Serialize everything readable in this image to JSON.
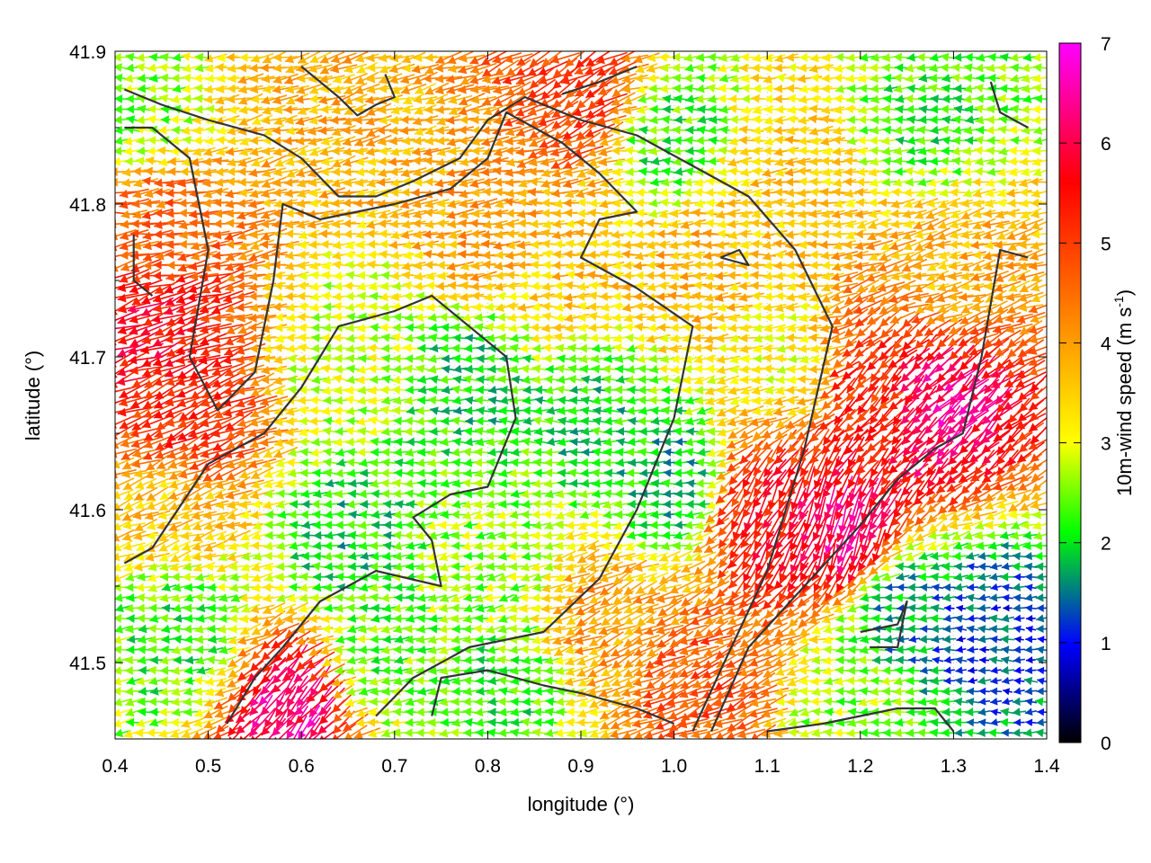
{
  "chart_data": {
    "type": "vector-field",
    "xlabel": "longitude (°)",
    "ylabel": "latitude (°)",
    "xlim": [
      0.4,
      1.4
    ],
    "ylim": [
      41.45,
      41.9
    ],
    "x_ticks": [
      "0.4",
      "0.5",
      "0.6",
      "0.7",
      "0.8",
      "0.9",
      "1.0",
      "1.1",
      "1.2",
      "1.3",
      "1.4"
    ],
    "y_ticks": [
      "41.5",
      "41.6",
      "41.7",
      "41.8",
      "41.9"
    ],
    "grid": true,
    "colorbar": {
      "label_main": "10m-wind speed (m s",
      "label_sup": "-1",
      "label_end": ")",
      "range": [
        0,
        7
      ],
      "ticks": [
        "0",
        "1",
        "2",
        "3",
        "4",
        "5",
        "6",
        "7"
      ],
      "colors": [
        "#000000",
        "#0000ff",
        "#00ff00",
        "#ffff00",
        "#ff0000",
        "#ff00ff"
      ],
      "stops": [
        0,
        0.14,
        0.3,
        0.43,
        0.8,
        1.0
      ]
    },
    "wind_zones": [
      {
        "lon": 0.44,
        "lat": 41.72,
        "speed": 5.6,
        "dir_deg": 200
      },
      {
        "lon": 0.48,
        "lat": 41.66,
        "speed": 5.2,
        "dir_deg": 205
      },
      {
        "lon": 0.45,
        "lat": 41.79,
        "speed": 4.6,
        "dir_deg": 185
      },
      {
        "lon": 0.46,
        "lat": 41.6,
        "speed": 3.6,
        "dir_deg": 200
      },
      {
        "lon": 0.47,
        "lat": 41.52,
        "speed": 2.2,
        "dir_deg": 185
      },
      {
        "lon": 0.43,
        "lat": 41.86,
        "speed": 2.6,
        "dir_deg": 180
      },
      {
        "lon": 0.62,
        "lat": 41.86,
        "speed": 3.8,
        "dir_deg": 195
      },
      {
        "lon": 0.66,
        "lat": 41.7,
        "speed": 2.8,
        "dir_deg": 180
      },
      {
        "lon": 0.65,
        "lat": 41.58,
        "speed": 2.0,
        "dir_deg": 180
      },
      {
        "lon": 0.6,
        "lat": 41.47,
        "speed": 6.3,
        "dir_deg": 230
      },
      {
        "lon": 0.68,
        "lat": 41.5,
        "speed": 2.4,
        "dir_deg": 185
      },
      {
        "lon": 0.8,
        "lat": 41.79,
        "speed": 4.0,
        "dir_deg": 185
      },
      {
        "lon": 0.78,
        "lat": 41.68,
        "speed": 2.0,
        "dir_deg": 180
      },
      {
        "lon": 0.8,
        "lat": 41.56,
        "speed": 2.6,
        "dir_deg": 190
      },
      {
        "lon": 0.82,
        "lat": 41.48,
        "speed": 2.2,
        "dir_deg": 180
      },
      {
        "lon": 0.9,
        "lat": 41.87,
        "speed": 5.0,
        "dir_deg": 210
      },
      {
        "lon": 0.9,
        "lat": 41.76,
        "speed": 3.6,
        "dir_deg": 180
      },
      {
        "lon": 0.92,
        "lat": 41.66,
        "speed": 2.0,
        "dir_deg": 180
      },
      {
        "lon": 0.93,
        "lat": 41.53,
        "speed": 4.0,
        "dir_deg": 205
      },
      {
        "lon": 1.0,
        "lat": 41.84,
        "speed": 2.2,
        "dir_deg": 180
      },
      {
        "lon": 1.02,
        "lat": 41.76,
        "speed": 3.8,
        "dir_deg": 185
      },
      {
        "lon": 1.0,
        "lat": 41.62,
        "speed": 1.8,
        "dir_deg": 180
      },
      {
        "lon": 1.03,
        "lat": 41.48,
        "speed": 4.8,
        "dir_deg": 205
      },
      {
        "lon": 1.1,
        "lat": 41.6,
        "speed": 5.5,
        "dir_deg": 240
      },
      {
        "lon": 1.12,
        "lat": 41.7,
        "speed": 3.2,
        "dir_deg": 185
      },
      {
        "lon": 1.12,
        "lat": 41.82,
        "speed": 3.6,
        "dir_deg": 185
      },
      {
        "lon": 1.18,
        "lat": 41.59,
        "speed": 6.2,
        "dir_deg": 250
      },
      {
        "lon": 1.22,
        "lat": 41.68,
        "speed": 5.2,
        "dir_deg": 225
      },
      {
        "lon": 1.28,
        "lat": 41.67,
        "speed": 6.3,
        "dir_deg": 225
      },
      {
        "lon": 1.25,
        "lat": 41.53,
        "speed": 1.6,
        "dir_deg": 180
      },
      {
        "lon": 1.33,
        "lat": 41.52,
        "speed": 1.2,
        "dir_deg": 180
      },
      {
        "lon": 1.3,
        "lat": 41.76,
        "speed": 3.8,
        "dir_deg": 195
      },
      {
        "lon": 1.28,
        "lat": 41.86,
        "speed": 2.2,
        "dir_deg": 180
      },
      {
        "lon": 1.2,
        "lat": 41.47,
        "speed": 2.6,
        "dir_deg": 185
      }
    ],
    "contours": [
      [
        [
          0.41,
          41.875
        ],
        [
          0.45,
          41.865
        ],
        [
          0.5,
          41.855
        ],
        [
          0.56,
          41.845
        ],
        [
          0.6,
          41.83
        ],
        [
          0.64,
          41.805
        ],
        [
          0.68,
          41.805
        ],
        [
          0.72,
          41.815
        ],
        [
          0.77,
          41.83
        ],
        [
          0.8,
          41.855
        ],
        [
          0.84,
          41.87
        ],
        [
          0.9,
          41.855
        ],
        [
          0.96,
          41.845
        ],
        [
          1.02,
          41.825
        ],
        [
          1.08,
          41.805
        ],
        [
          1.13,
          41.77
        ],
        [
          1.17,
          41.72
        ],
        [
          1.14,
          41.64
        ],
        [
          1.1,
          41.56
        ],
        [
          1.05,
          41.495
        ],
        [
          1.02,
          41.455
        ]
      ],
      [
        [
          0.41,
          41.85
        ],
        [
          0.44,
          41.85
        ],
        [
          0.48,
          41.83
        ],
        [
          0.5,
          41.77
        ],
        [
          0.48,
          41.7
        ],
        [
          0.51,
          41.665
        ],
        [
          0.55,
          41.69
        ],
        [
          0.57,
          41.75
        ],
        [
          0.58,
          41.8
        ],
        [
          0.62,
          41.79
        ],
        [
          0.7,
          41.8
        ],
        [
          0.76,
          41.81
        ],
        [
          0.8,
          41.83
        ],
        [
          0.82,
          41.86
        ],
        [
          0.88,
          41.84
        ],
        [
          0.92,
          41.82
        ],
        [
          0.96,
          41.795
        ],
        [
          0.92,
          41.79
        ],
        [
          0.9,
          41.765
        ],
        [
          0.96,
          41.745
        ],
        [
          1.02,
          41.72
        ],
        [
          1.0,
          41.66
        ],
        [
          0.96,
          41.6
        ],
        [
          0.92,
          41.555
        ],
        [
          0.86,
          41.52
        ],
        [
          0.78,
          41.51
        ],
        [
          0.72,
          41.49
        ],
        [
          0.68,
          41.465
        ]
      ],
      [
        [
          0.41,
          41.565
        ],
        [
          0.44,
          41.575
        ],
        [
          0.5,
          41.63
        ],
        [
          0.56,
          41.65
        ],
        [
          0.6,
          41.68
        ],
        [
          0.64,
          41.72
        ],
        [
          0.7,
          41.73
        ],
        [
          0.74,
          41.74
        ],
        [
          0.78,
          41.72
        ],
        [
          0.82,
          41.7
        ],
        [
          0.83,
          41.66
        ],
        [
          0.8,
          41.615
        ],
        [
          0.76,
          41.61
        ],
        [
          0.72,
          41.595
        ],
        [
          0.74,
          41.58
        ],
        [
          0.75,
          41.55
        ],
        [
          0.68,
          41.56
        ],
        [
          0.62,
          41.54
        ],
        [
          0.58,
          41.51
        ],
        [
          0.55,
          41.49
        ],
        [
          0.52,
          41.46
        ]
      ],
      [
        [
          1.04,
          41.455
        ],
        [
          1.08,
          41.51
        ],
        [
          1.14,
          41.55
        ],
        [
          1.2,
          41.59
        ],
        [
          1.24,
          41.62
        ],
        [
          1.28,
          41.64
        ],
        [
          1.31,
          41.65
        ],
        [
          1.33,
          41.7
        ],
        [
          1.35,
          41.77
        ],
        [
          1.38,
          41.765
        ]
      ],
      [
        [
          0.74,
          41.465
        ],
        [
          0.75,
          41.49
        ],
        [
          0.8,
          41.495
        ],
        [
          0.86,
          41.485
        ],
        [
          0.9,
          41.48
        ],
        [
          0.96,
          41.47
        ],
        [
          1.0,
          41.46
        ]
      ],
      [
        [
          1.2,
          41.52
        ],
        [
          1.24,
          41.525
        ],
        [
          1.25,
          41.54
        ],
        [
          1.24,
          41.51
        ],
        [
          1.21,
          41.51
        ]
      ],
      [
        [
          1.1,
          41.455
        ],
        [
          1.16,
          41.46
        ],
        [
          1.24,
          41.47
        ],
        [
          1.28,
          41.47
        ],
        [
          1.3,
          41.455
        ]
      ],
      [
        [
          1.05,
          41.765
        ],
        [
          1.08,
          41.76
        ],
        [
          1.07,
          41.77
        ],
        [
          1.05,
          41.765
        ]
      ],
      [
        [
          1.34,
          41.88
        ],
        [
          1.35,
          41.86
        ],
        [
          1.38,
          41.85
        ]
      ],
      [
        [
          0.42,
          41.78
        ],
        [
          0.42,
          41.75
        ],
        [
          0.44,
          41.74
        ]
      ],
      [
        [
          0.69,
          41.885
        ],
        [
          0.7,
          41.87
        ],
        [
          0.68,
          41.865
        ],
        [
          0.66,
          41.858
        ],
        [
          0.64,
          41.87
        ],
        [
          0.62,
          41.88
        ],
        [
          0.6,
          41.89
        ]
      ],
      [
        [
          0.96,
          41.89
        ],
        [
          0.92,
          41.88
        ],
        [
          0.88,
          41.872
        ]
      ]
    ]
  }
}
